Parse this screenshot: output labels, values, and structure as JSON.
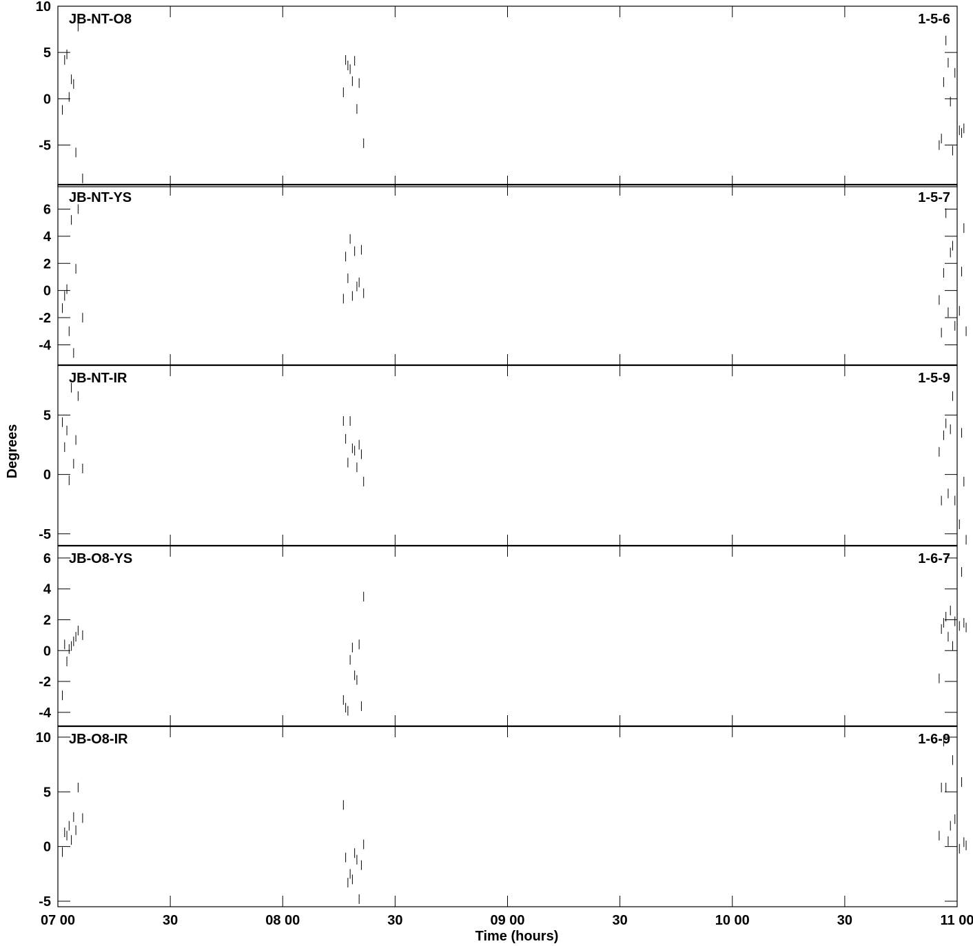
{
  "xlabel": "Time (hours)",
  "ylabel": "Degrees",
  "x_tick_labels": [
    "07 00",
    "30",
    "08 00",
    "30",
    "09 00",
    "30",
    "10 00",
    "30",
    "11 00"
  ],
  "chart_data": [
    {
      "type": "scatter",
      "baseline": "JB-NT-O8",
      "code": "1-5-6",
      "ylim": [
        -9.5,
        10
      ],
      "yticks": [
        -5,
        0,
        5,
        10
      ],
      "series": [
        {
          "points": [
            [
              7.02,
              -1.2
            ],
            [
              7.03,
              4.2
            ],
            [
              7.04,
              4.8
            ],
            [
              7.05,
              0.2
            ],
            [
              7.06,
              2.1
            ],
            [
              7.07,
              1.6
            ],
            [
              7.08,
              -5.8
            ],
            [
              7.09,
              7.8
            ],
            [
              7.11,
              -8.6
            ],
            [
              8.27,
              0.7
            ],
            [
              8.28,
              4.2
            ],
            [
              8.29,
              3.6
            ],
            [
              8.3,
              3.2
            ],
            [
              8.31,
              1.9
            ],
            [
              8.32,
              4.1
            ],
            [
              8.33,
              -1.1
            ],
            [
              8.34,
              1.7
            ],
            [
              8.36,
              -4.8
            ],
            [
              10.92,
              -5.0
            ],
            [
              10.93,
              -4.3
            ],
            [
              10.94,
              1.8
            ],
            [
              10.95,
              6.3
            ],
            [
              10.96,
              3.9
            ],
            [
              10.97,
              -0.3
            ],
            [
              10.98,
              -5.6
            ],
            [
              10.99,
              2.8
            ],
            [
              11.0,
              -2.4
            ],
            [
              11.01,
              -3.4
            ],
            [
              11.02,
              -3.7
            ],
            [
              11.03,
              -3.2
            ]
          ]
        }
      ]
    },
    {
      "type": "scatter",
      "baseline": "JB-NT-YS",
      "code": "1-5-7",
      "ylim": [
        -5.5,
        7.8
      ],
      "yticks": [
        -4,
        -2,
        0,
        2,
        4,
        6
      ],
      "series": [
        {
          "points": [
            [
              7.02,
              -1.3
            ],
            [
              7.03,
              -0.4
            ],
            [
              7.04,
              0.1
            ],
            [
              7.05,
              -3.0
            ],
            [
              7.06,
              5.2
            ],
            [
              7.07,
              -4.6
            ],
            [
              7.08,
              1.6
            ],
            [
              7.09,
              6.0
            ],
            [
              7.11,
              -2.0
            ],
            [
              8.27,
              -0.6
            ],
            [
              8.28,
              2.5
            ],
            [
              8.29,
              0.9
            ],
            [
              8.3,
              3.8
            ],
            [
              8.31,
              -0.4
            ],
            [
              8.32,
              2.9
            ],
            [
              8.33,
              0.3
            ],
            [
              8.34,
              0.6
            ],
            [
              8.35,
              3.0
            ],
            [
              8.36,
              -0.2
            ],
            [
              10.92,
              -0.7
            ],
            [
              10.93,
              -3.1
            ],
            [
              10.94,
              1.3
            ],
            [
              10.95,
              5.7
            ],
            [
              10.96,
              -1.6
            ],
            [
              10.97,
              2.8
            ],
            [
              10.98,
              3.3
            ],
            [
              10.99,
              -2.6
            ],
            [
              11.0,
              -0.5
            ],
            [
              11.01,
              -1.5
            ],
            [
              11.02,
              1.4
            ],
            [
              11.03,
              4.6
            ],
            [
              11.04,
              -3.0
            ]
          ]
        }
      ]
    },
    {
      "type": "scatter",
      "baseline": "JB-NT-IR",
      "code": "1-5-9",
      "ylim": [
        -6,
        9.2
      ],
      "yticks": [
        -5,
        0,
        5
      ],
      "series": [
        {
          "points": [
            [
              7.02,
              4.4
            ],
            [
              7.03,
              2.3
            ],
            [
              7.04,
              3.7
            ],
            [
              7.05,
              -0.5
            ],
            [
              7.06,
              7.3
            ],
            [
              7.07,
              0.9
            ],
            [
              7.08,
              2.9
            ],
            [
              7.09,
              6.6
            ],
            [
              7.11,
              0.5
            ],
            [
              8.27,
              4.5
            ],
            [
              8.28,
              3.0
            ],
            [
              8.29,
              1.0
            ],
            [
              8.3,
              4.5
            ],
            [
              8.31,
              2.2
            ],
            [
              8.32,
              2.0
            ],
            [
              8.33,
              0.6
            ],
            [
              8.34,
              2.5
            ],
            [
              8.35,
              1.7
            ],
            [
              8.36,
              -0.6
            ],
            [
              10.92,
              1.9
            ],
            [
              10.93,
              -2.2
            ],
            [
              10.94,
              3.3
            ],
            [
              10.95,
              4.3
            ],
            [
              10.96,
              -1.6
            ],
            [
              10.97,
              3.8
            ],
            [
              10.98,
              6.6
            ],
            [
              10.99,
              -2.2
            ],
            [
              11.0,
              -0.8
            ],
            [
              11.01,
              -4.2
            ],
            [
              11.02,
              3.5
            ],
            [
              11.03,
              -0.6
            ],
            [
              11.04,
              -5.5
            ]
          ]
        }
      ]
    },
    {
      "type": "scatter",
      "baseline": "JB-O8-YS",
      "code": "1-6-7",
      "ylim": [
        -4.9,
        6.8
      ],
      "yticks": [
        -4,
        -2,
        0,
        2,
        4,
        6
      ],
      "series": [
        {
          "points": [
            [
              7.02,
              -2.9
            ],
            [
              7.03,
              0.4
            ],
            [
              7.04,
              -0.7
            ],
            [
              7.05,
              0.1
            ],
            [
              7.06,
              0.3
            ],
            [
              7.07,
              0.6
            ],
            [
              7.08,
              0.9
            ],
            [
              7.09,
              1.3
            ],
            [
              7.11,
              1.0
            ],
            [
              8.27,
              -3.2
            ],
            [
              8.28,
              -3.7
            ],
            [
              8.29,
              -3.9
            ],
            [
              8.3,
              -0.6
            ],
            [
              8.31,
              0.2
            ],
            [
              8.32,
              -1.6
            ],
            [
              8.33,
              -1.9
            ],
            [
              8.34,
              0.4
            ],
            [
              8.35,
              -3.6
            ],
            [
              8.36,
              3.5
            ],
            [
              10.92,
              -1.8
            ],
            [
              10.93,
              1.4
            ],
            [
              10.94,
              1.8
            ],
            [
              10.95,
              2.2
            ],
            [
              10.96,
              0.9
            ],
            [
              10.97,
              2.6
            ],
            [
              10.98,
              0.3
            ],
            [
              10.99,
              1.9
            ],
            [
              11.0,
              2.1
            ],
            [
              11.01,
              1.6
            ],
            [
              11.02,
              5.1
            ],
            [
              11.03,
              1.8
            ],
            [
              11.04,
              1.5
            ]
          ]
        }
      ]
    },
    {
      "type": "scatter",
      "baseline": "JB-O8-IR",
      "code": "1-6-9",
      "ylim": [
        -5.5,
        11
      ],
      "yticks": [
        -5,
        0,
        5,
        10
      ],
      "series": [
        {
          "points": [
            [
              7.02,
              -0.5
            ],
            [
              7.03,
              1.3
            ],
            [
              7.04,
              1.0
            ],
            [
              7.05,
              1.9
            ],
            [
              7.06,
              0.6
            ],
            [
              7.07,
              2.7
            ],
            [
              7.08,
              1.5
            ],
            [
              7.09,
              5.4
            ],
            [
              7.11,
              2.6
            ],
            [
              8.27,
              3.8
            ],
            [
              8.28,
              -1.0
            ],
            [
              8.29,
              -3.3
            ],
            [
              8.3,
              -2.5
            ],
            [
              8.31,
              -3.0
            ],
            [
              8.32,
              -0.6
            ],
            [
              8.33,
              -1.2
            ],
            [
              8.34,
              -4.8
            ],
            [
              8.35,
              -1.7
            ],
            [
              8.36,
              0.2
            ],
            [
              10.92,
              1.0
            ],
            [
              10.93,
              5.4
            ],
            [
              10.94,
              9.6
            ],
            [
              10.95,
              5.4
            ],
            [
              10.96,
              0.5
            ],
            [
              10.97,
              1.9
            ],
            [
              10.98,
              7.9
            ],
            [
              10.99,
              2.5
            ],
            [
              11.0,
              0.3
            ],
            [
              11.01,
              -0.2
            ],
            [
              11.02,
              5.9
            ],
            [
              11.03,
              0.4
            ],
            [
              11.04,
              0.1
            ]
          ]
        }
      ]
    }
  ]
}
